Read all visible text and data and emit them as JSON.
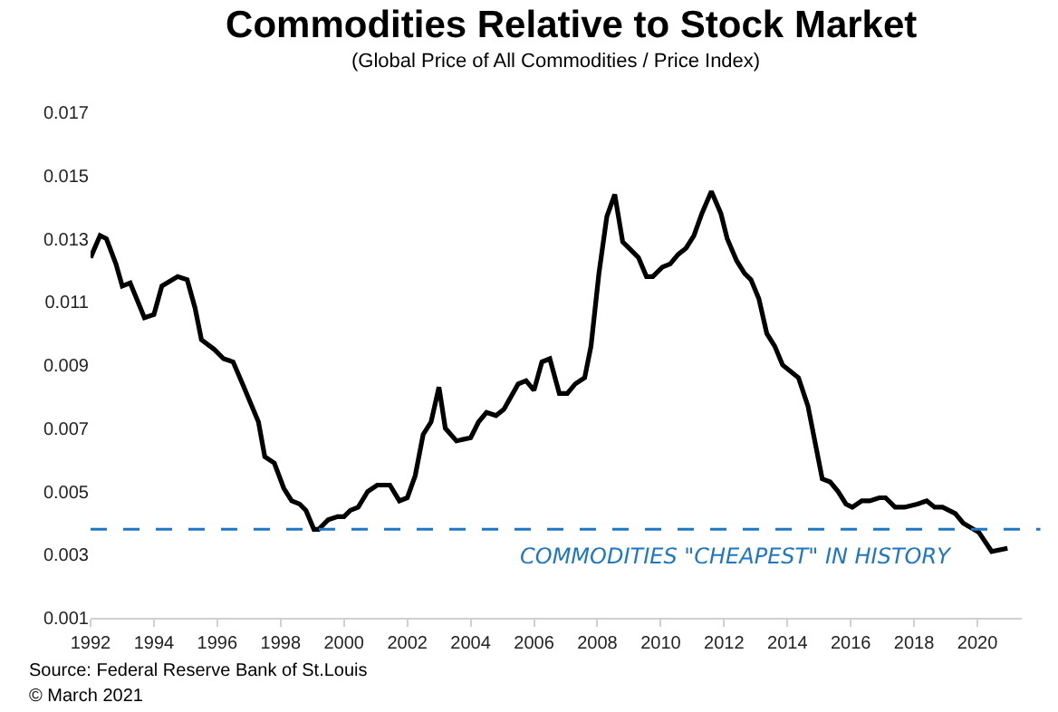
{
  "chart_data": {
    "type": "line",
    "title": "Commodities Relative to Stock Market",
    "subtitle": "(Global Price of All Commodities / Price Index)",
    "x": [
      1992.0,
      1992.3,
      1992.5,
      1992.8,
      1993.0,
      1993.25,
      1993.7,
      1994.0,
      1994.25,
      1994.75,
      1995.05,
      1995.3,
      1995.5,
      1995.9,
      1996.2,
      1996.5,
      1996.8,
      1997.3,
      1997.5,
      1997.8,
      1998.1,
      1998.35,
      1998.6,
      1998.8,
      1999.05,
      1999.2,
      1999.5,
      1999.8,
      2000.0,
      2000.2,
      2000.45,
      2000.75,
      2001.05,
      2001.45,
      2001.75,
      2002.0,
      2002.25,
      2002.5,
      2002.75,
      2003.0,
      2003.2,
      2003.55,
      2004.0,
      2004.25,
      2004.5,
      2004.8,
      2005.05,
      2005.5,
      2005.75,
      2006.0,
      2006.25,
      2006.5,
      2006.8,
      2007.05,
      2007.3,
      2007.6,
      2007.8,
      2008.05,
      2008.3,
      2008.55,
      2008.8,
      2009.0,
      2009.3,
      2009.55,
      2009.75,
      2010.05,
      2010.3,
      2010.55,
      2010.8,
      2011.05,
      2011.3,
      2011.6,
      2011.9,
      2012.1,
      2012.4,
      2012.65,
      2012.85,
      2013.1,
      2013.35,
      2013.6,
      2013.85,
      2014.1,
      2014.35,
      2014.65,
      2015.1,
      2015.35,
      2015.6,
      2015.85,
      2016.05,
      2016.35,
      2016.6,
      2016.9,
      2017.1,
      2017.4,
      2017.7,
      2018.1,
      2018.4,
      2018.65,
      2018.9,
      2019.3,
      2019.55,
      2020.05,
      2020.45,
      2020.95
    ],
    "series": [
      {
        "color": "#000000",
        "values": [
          0.0124,
          0.0131,
          0.013,
          0.0122,
          0.0115,
          0.0116,
          0.0105,
          0.0106,
          0.0115,
          0.0118,
          0.0117,
          0.0108,
          0.0098,
          0.0095,
          0.0092,
          0.0091,
          0.0084,
          0.0072,
          0.0061,
          0.0059,
          0.0051,
          0.0047,
          0.0046,
          0.0044,
          0.0038,
          0.0038,
          0.0041,
          0.0042,
          0.0042,
          0.0044,
          0.0045,
          0.005,
          0.0052,
          0.0052,
          0.0047,
          0.0048,
          0.0055,
          0.0068,
          0.0072,
          0.0083,
          0.007,
          0.0066,
          0.0067,
          0.0072,
          0.0075,
          0.0074,
          0.0076,
          0.0084,
          0.0085,
          0.0082,
          0.0091,
          0.0092,
          0.0081,
          0.0081,
          0.0084,
          0.0086,
          0.0096,
          0.0119,
          0.0137,
          0.0144,
          0.0129,
          0.0127,
          0.0124,
          0.0118,
          0.0118,
          0.0121,
          0.0122,
          0.0125,
          0.0127,
          0.0131,
          0.0138,
          0.0145,
          0.0138,
          0.013,
          0.0123,
          0.0119,
          0.0117,
          0.0111,
          0.01,
          0.0096,
          0.009,
          0.0088,
          0.0086,
          0.0077,
          0.0054,
          0.0053,
          0.005,
          0.0046,
          0.0045,
          0.0047,
          0.0047,
          0.0048,
          0.0048,
          0.0045,
          0.0045,
          0.0046,
          0.0047,
          0.0045,
          0.0045,
          0.0043,
          0.004,
          0.0037,
          0.0031,
          0.0032
        ]
      }
    ],
    "xlim": [
      1992,
      2021.4
    ],
    "xticks": [
      1992,
      1994,
      1996,
      1998,
      2000,
      2002,
      2004,
      2006,
      2008,
      2010,
      2012,
      2014,
      2016,
      2018,
      2020
    ],
    "ylim": [
      0.001,
      0.017
    ],
    "yticks": [
      0.001,
      0.003,
      0.005,
      0.007,
      0.009,
      0.011,
      0.013,
      0.015,
      0.017
    ],
    "marker": "none",
    "line_style": "solid",
    "ref_lines": [
      {
        "axis": "y",
        "value": 0.0038,
        "label": "COMMODITIES \"CHEAPEST\" IN HISTORY",
        "color": "#1f77c4",
        "line_style": "dashed"
      }
    ],
    "annotations": [
      "Source: Federal Reserve Bank of St.Louis",
      "© March 2021"
    ]
  }
}
